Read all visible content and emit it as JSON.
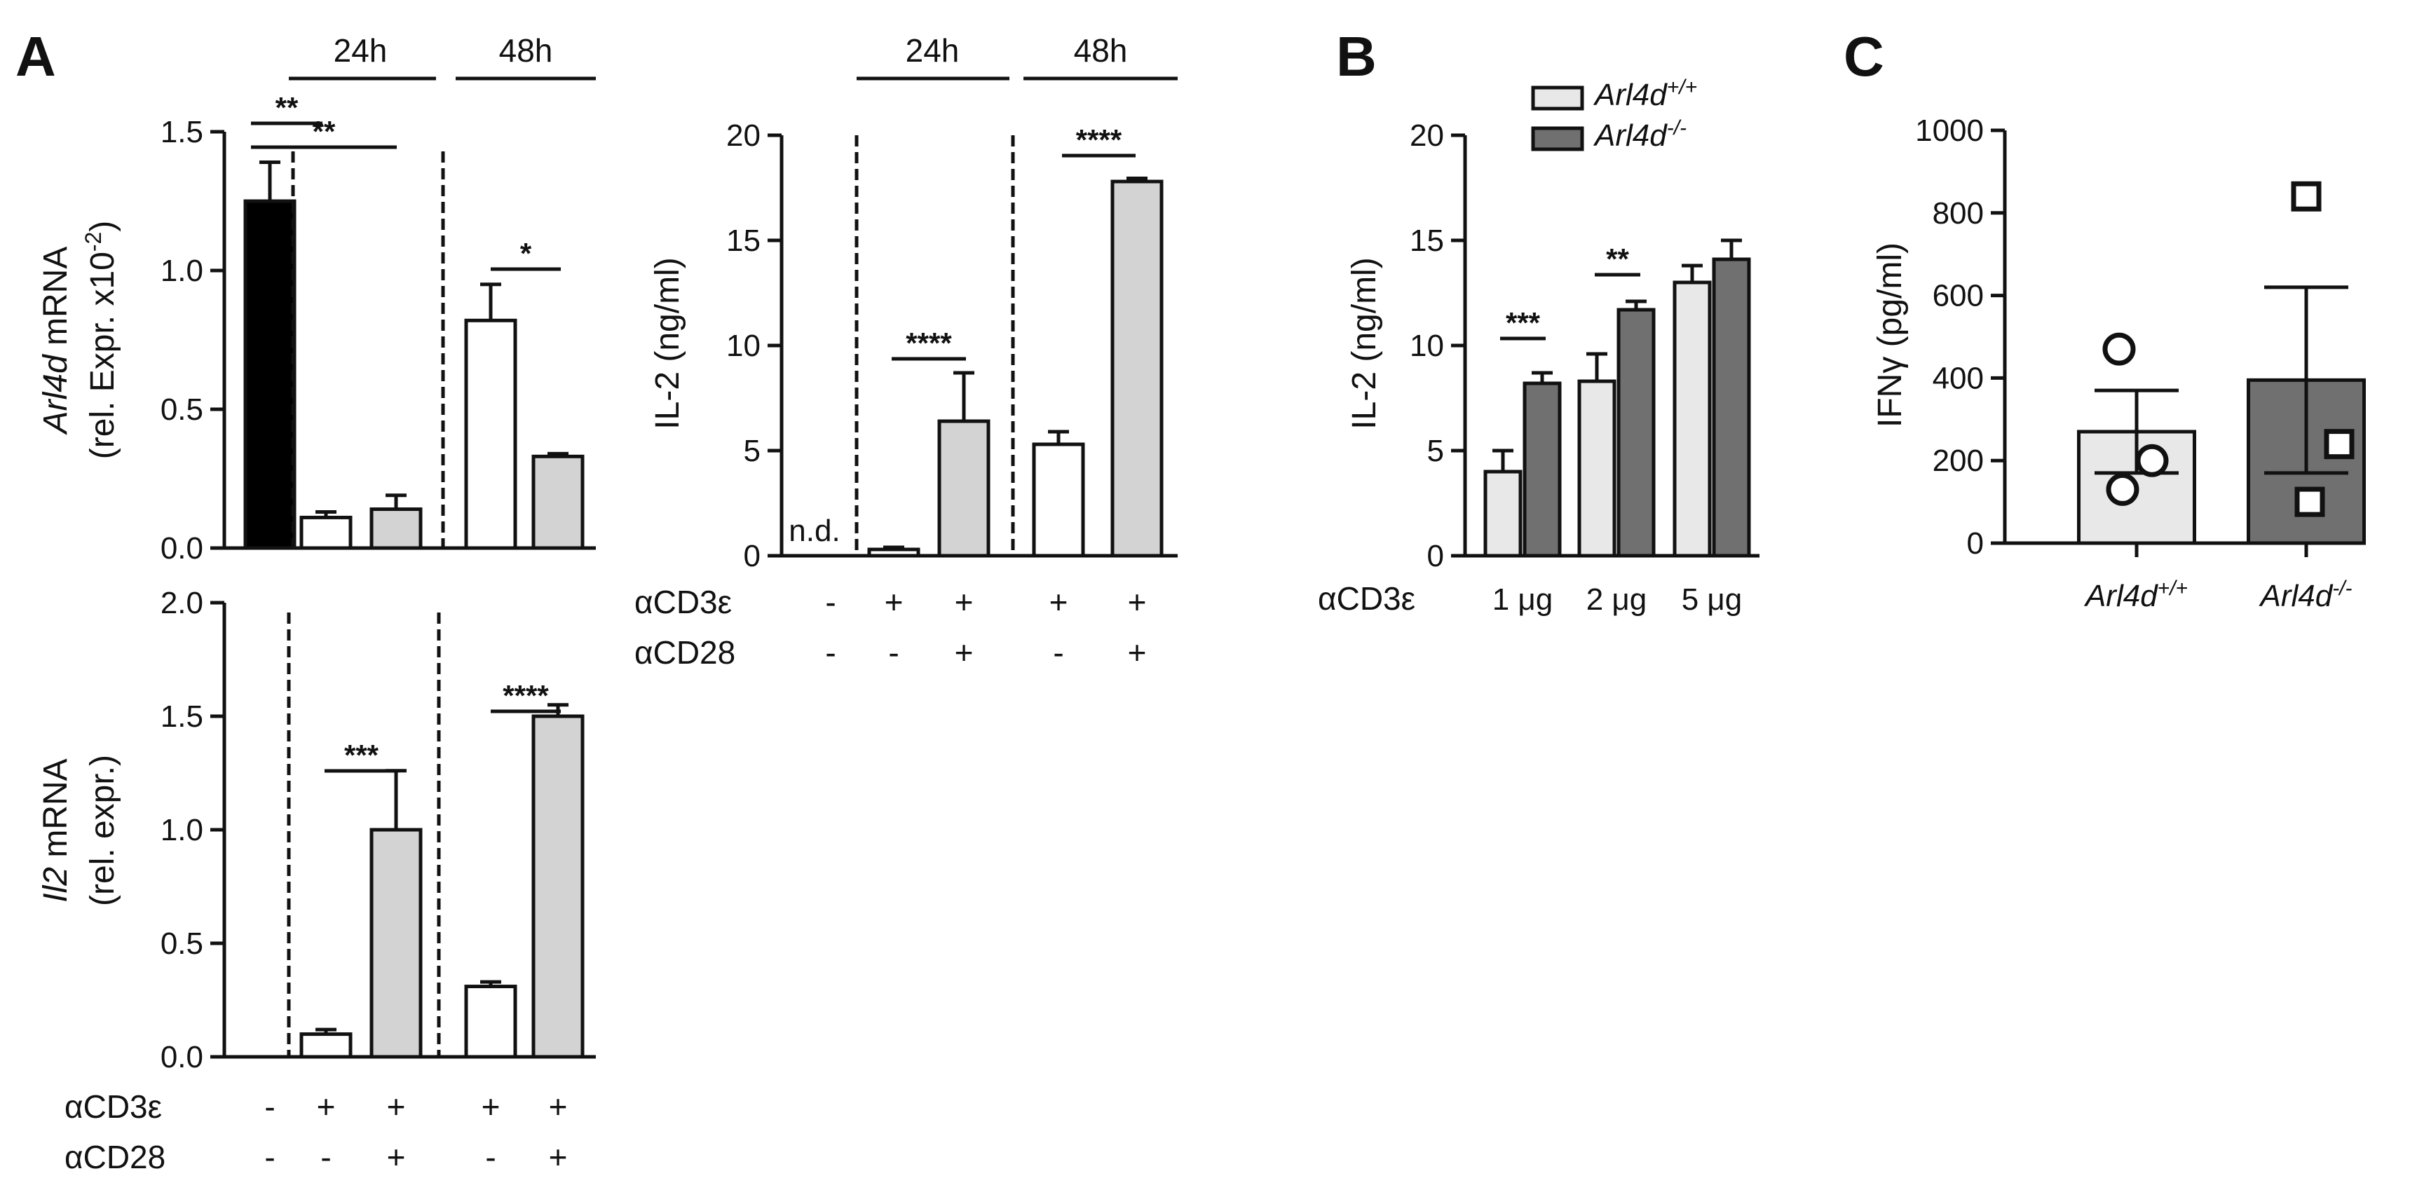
{
  "panel_labels": {
    "A": "A",
    "B": "B",
    "C": "C"
  },
  "chart_data": [
    {
      "id": "A1",
      "type": "bar",
      "ylabel_gene": "Arl4d",
      "ylabel_rest": " mRNA",
      "ylabel2": "(rel. Expr. x10",
      "ylabel2_sup": "-2",
      "ylabel2_end": ")",
      "ylim": [
        0,
        1.5
      ],
      "yticks": [
        0,
        0.5,
        1.0,
        1.5
      ],
      "ytick_labels": [
        "0.0",
        "0.5",
        "1.0",
        "1.5"
      ],
      "groups": [
        {
          "label": "",
          "bars": [
            {
              "value": 1.25,
              "error": 0.14,
              "fill": "#000000"
            }
          ]
        },
        {
          "label": "24h",
          "bars": [
            {
              "value": 0.11,
              "error": 0.02,
              "fill": "#ffffff"
            },
            {
              "value": 0.14,
              "error": 0.05,
              "fill": "#d3d3d3"
            }
          ]
        },
        {
          "label": "48h",
          "bars": [
            {
              "value": 0.82,
              "error": 0.13,
              "fill": "#ffffff"
            },
            {
              "value": 0.33,
              "error": 0.01,
              "fill": "#d3d3d3"
            }
          ]
        }
      ],
      "significance": [
        {
          "label": "**",
          "from": 0,
          "to": 1
        },
        {
          "label": "**",
          "from": 0,
          "to": 2
        },
        {
          "label": "*",
          "from": 3,
          "to": 4
        }
      ]
    },
    {
      "id": "A2",
      "type": "bar",
      "ylabel_gene": "Il2",
      "ylabel_rest": " mRNA",
      "ylabel2": "(rel. expr.)",
      "ylim": [
        0,
        2.0
      ],
      "yticks": [
        0,
        0.5,
        1.0,
        1.5,
        2.0
      ],
      "ytick_labels": [
        "0.0",
        "0.5",
        "1.0",
        "1.5",
        "2.0"
      ],
      "bars": [
        {
          "value": 0.0,
          "error": 0.0,
          "fill": "#ffffff"
        },
        {
          "value": 0.1,
          "error": 0.02,
          "fill": "#ffffff"
        },
        {
          "value": 1.0,
          "error": 0.26,
          "fill": "#d3d3d3"
        },
        {
          "value": 0.31,
          "error": 0.02,
          "fill": "#ffffff"
        },
        {
          "value": 1.5,
          "error": 0.05,
          "fill": "#d3d3d3"
        }
      ],
      "significance": [
        {
          "label": "***",
          "from": 1,
          "to": 2
        },
        {
          "label": "****",
          "from": 3,
          "to": 4
        }
      ],
      "conditions": [
        {
          "name": "αCD3ε",
          "values": [
            "-",
            "+",
            "+",
            "+",
            "+"
          ]
        },
        {
          "name": "αCD28",
          "values": [
            "-",
            "-",
            "+",
            "-",
            "+"
          ]
        }
      ]
    },
    {
      "id": "A3",
      "type": "bar",
      "ylabel": "IL-2 (ng/ml)",
      "ylim": [
        0,
        20
      ],
      "yticks": [
        0,
        5,
        10,
        15,
        20
      ],
      "ytick_labels": [
        "0",
        "5",
        "10",
        "15",
        "20"
      ],
      "group_labels": [
        "24h",
        "48h"
      ],
      "nd_label": "n.d.",
      "bars": [
        {
          "value": 0.0,
          "error": 0.0,
          "fill": "#ffffff"
        },
        {
          "value": 0.3,
          "error": 0.1,
          "fill": "#ffffff"
        },
        {
          "value": 6.4,
          "error": 2.3,
          "fill": "#d3d3d3"
        },
        {
          "value": 5.3,
          "error": 0.6,
          "fill": "#ffffff"
        },
        {
          "value": 17.8,
          "error": 0.15,
          "fill": "#d3d3d3"
        }
      ],
      "significance": [
        {
          "label": "****",
          "from": 1,
          "to": 2
        },
        {
          "label": "****",
          "from": 3,
          "to": 4
        }
      ],
      "conditions": [
        {
          "name": "αCD3ε",
          "values": [
            "-",
            "+",
            "+",
            "+",
            "+"
          ]
        },
        {
          "name": "αCD28",
          "values": [
            "-",
            "-",
            "+",
            "-",
            "+"
          ]
        }
      ]
    },
    {
      "id": "B",
      "type": "bar",
      "ylabel": "IL-2 (ng/ml)",
      "ylim": [
        0,
        20
      ],
      "yticks": [
        0,
        5,
        10,
        15,
        20
      ],
      "ytick_labels": [
        "0",
        "5",
        "10",
        "15",
        "20"
      ],
      "categories": [
        "1 μg",
        "2 μg",
        "5 μg"
      ],
      "xlabel": "αCD3ε",
      "series": [
        {
          "name": "Arl4d",
          "name_sup": "+/+",
          "color": "#e8e8e8",
          "values": [
            4.0,
            8.3,
            13.0
          ],
          "errors": [
            1.0,
            1.3,
            0.8
          ]
        },
        {
          "name": "Arl4d",
          "name_sup": "-/-",
          "color": "#707070",
          "values": [
            8.2,
            11.7,
            14.1
          ],
          "errors": [
            0.5,
            0.4,
            0.9
          ]
        }
      ],
      "significance": [
        {
          "label": "***",
          "category": 0
        },
        {
          "label": "**",
          "category": 1
        }
      ]
    },
    {
      "id": "C",
      "type": "bar",
      "ylabel": "IFNγ (pg/ml)",
      "ylim": [
        0,
        1000
      ],
      "yticks": [
        0,
        200,
        400,
        600,
        800,
        1000
      ],
      "ytick_labels": [
        "0",
        "200",
        "400",
        "600",
        "800",
        "1000"
      ],
      "bars": [
        {
          "label": "Arl4d",
          "label_sup": "+/+",
          "value": 270,
          "error": 100,
          "fill": "#e8e8e8",
          "points": [
            470,
            200,
            130
          ],
          "marker": "circle"
        },
        {
          "label": "Arl4d",
          "label_sup": "-/-",
          "value": 395,
          "error": 225,
          "fill": "#707070",
          "points": [
            840,
            240,
            100
          ],
          "marker": "square"
        }
      ]
    }
  ]
}
